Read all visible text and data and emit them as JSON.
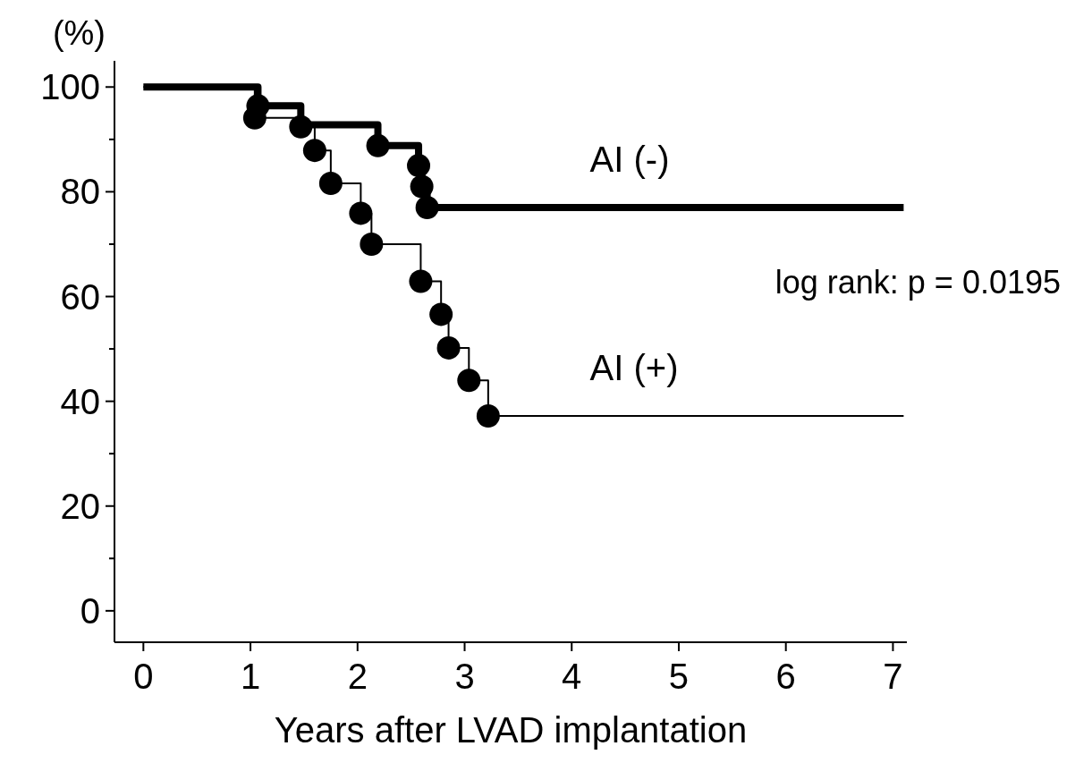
{
  "chart_data": {
    "type": "step",
    "ylabel": "(%)",
    "xlabel": "Years after LVAD implantation",
    "xlim": [
      -0.27,
      7.13
    ],
    "ylim": [
      -6,
      105
    ],
    "xticks": [
      0,
      1,
      2,
      3,
      4,
      5,
      6,
      7
    ],
    "yticks": [
      0,
      {
        "value": 10,
        "label": null
      },
      20,
      {
        "value": 30,
        "label": null
      },
      40,
      {
        "value": 50,
        "label": null
      },
      60,
      {
        "value": 70,
        "label": null
      },
      80,
      {
        "value": 90,
        "label": null
      },
      100
    ],
    "grid": false,
    "line_style": "solid",
    "annotations": [
      "log rank: p = 0.0195"
    ],
    "series": [
      {
        "name": "AI (-)",
        "color": "#000000",
        "x": [
          0,
          1.07,
          1.47,
          2.19,
          2.57,
          2.6,
          2.65,
          7.1
        ],
        "values": [
          100,
          96.4,
          92.8,
          88.8,
          85,
          81,
          77,
          77
        ]
      },
      {
        "name": "AI (+)",
        "color": "#000000",
        "x": [
          0,
          1.04,
          1.47,
          1.6,
          1.75,
          2.03,
          2.13,
          2.59,
          2.78,
          2.85,
          3.04,
          3.22,
          7.1
        ],
        "values": [
          100,
          94.1,
          92.4,
          87.9,
          81.6,
          75.9,
          70,
          62.9,
          56.6,
          50.2,
          44,
          37.2,
          37.2
        ]
      },
      {
        "type": "scatter",
        "marker": "circle",
        "color": "#000000",
        "x": [
          1.07,
          2.19,
          2.57,
          2.6,
          2.65
        ],
        "values": [
          96.4,
          88.8,
          85,
          81,
          77
        ]
      },
      {
        "type": "scatter",
        "marker": "circle",
        "color": "#000000",
        "x": [
          1.04,
          1.47,
          1.6,
          1.75,
          2.03,
          2.13,
          2.59,
          2.78,
          2.85,
          3.04,
          3.22
        ],
        "values": [
          94.1,
          92.4,
          87.9,
          81.6,
          75.9,
          70,
          62.9,
          56.6,
          50.2,
          44,
          37.2
        ]
      }
    ]
  }
}
